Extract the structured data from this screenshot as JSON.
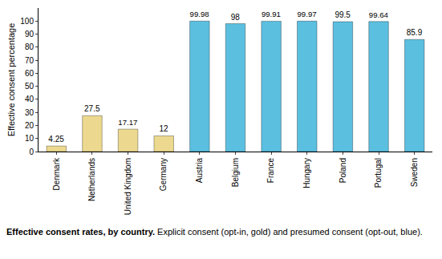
{
  "chart_data": {
    "type": "bar",
    "y_label": "Effective consent percentage",
    "categories": [
      "Denmark",
      "Netherlands",
      "United Kingdom",
      "Germany",
      "Austria",
      "Belgium",
      "France",
      "Hungary",
      "Poland",
      "Portugal",
      "Sweden"
    ],
    "values": [
      4.25,
      27.5,
      17.17,
      12,
      99.98,
      98,
      99.91,
      99.97,
      99.5,
      99.64,
      85.9
    ],
    "colors": [
      "#ecd98f",
      "#ecd98f",
      "#ecd98f",
      "#ecd98f",
      "#5bbfe0",
      "#5bbfe0",
      "#5bbfe0",
      "#5bbfe0",
      "#5bbfe0",
      "#5bbfe0",
      "#5bbfe0"
    ],
    "ylim": [
      0,
      110
    ],
    "yticks": [
      0,
      10,
      20,
      30,
      40,
      50,
      60,
      70,
      80,
      90,
      100
    ],
    "grid": false,
    "data_labels": true,
    "caption_title": "Effective consent rates, by country.",
    "caption": " Explicit consent (opt-in, gold) and presumed consent (opt-out, blue)."
  }
}
